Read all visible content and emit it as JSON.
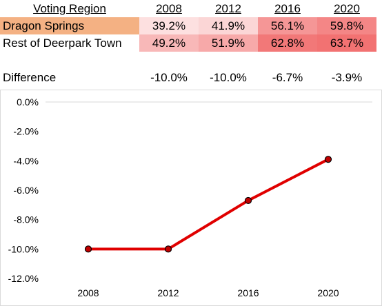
{
  "table": {
    "header": {
      "region": "Voting Region",
      "years": [
        "2008",
        "2012",
        "2016",
        "2020"
      ]
    },
    "rows": [
      {
        "region": "Dragon Springs",
        "values": [
          "39.2%",
          "41.9%",
          "56.1%",
          "59.8%"
        ],
        "cell_colors": [
          "#fde0e0",
          "#fbd6d6",
          "#f59696",
          "#f48686"
        ]
      },
      {
        "region": "Rest of Deerpark Town",
        "values": [
          "49.2%",
          "51.9%",
          "62.8%",
          "63.7%"
        ],
        "cell_colors": [
          "#f8b8b8",
          "#f7a9a9",
          "#f27878",
          "#f27272"
        ]
      }
    ],
    "difference": {
      "label": "Difference",
      "values": [
        "-10.0%",
        "-10.0%",
        "-6.7%",
        "-3.9%"
      ]
    }
  },
  "colors": {
    "highlight_row": "#f4b183",
    "line": "#e00000",
    "marker": "#c00000"
  },
  "chart_data": {
    "type": "line",
    "categories": [
      "2008",
      "2012",
      "2016",
      "2020"
    ],
    "series": [
      {
        "values": [
          -10.0,
          -10.0,
          -6.7,
          -3.9
        ]
      }
    ],
    "ylim": [
      -12.0,
      0.0
    ],
    "y_ticks": [
      "0.0%",
      "-2.0%",
      "-4.0%",
      "-6.0%",
      "-8.0%",
      "-10.0%",
      "-12.0%"
    ],
    "grid": false,
    "title": "",
    "xlabel": "",
    "ylabel": ""
  }
}
